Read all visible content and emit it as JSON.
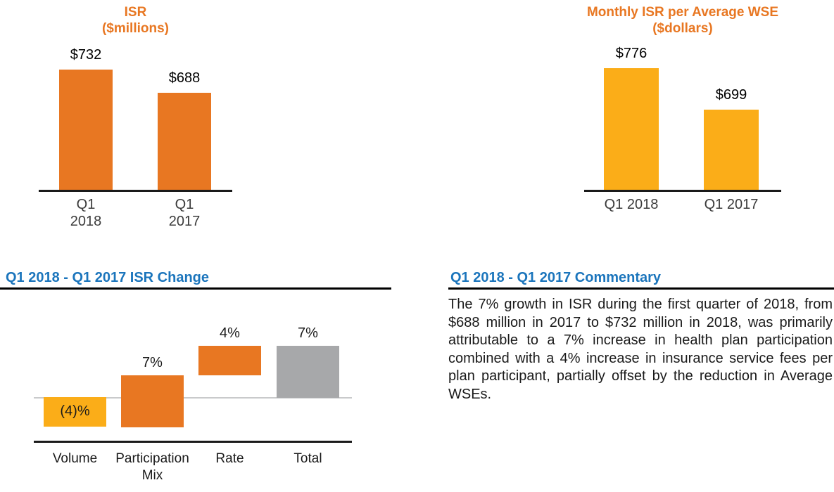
{
  "colors": {
    "accent_orange": "#E87722",
    "accent_yellow": "#FBAD18",
    "neutral_gray": "#A7A8AA",
    "heading_blue": "#1B75BC"
  },
  "chart_data": [
    {
      "type": "bar",
      "title": "ISR",
      "subtitle": "($millions)",
      "categories": [
        "Q1 2018",
        "Q1 2017"
      ],
      "values": [
        732,
        688
      ],
      "bar_labels": [
        "$732",
        "$688"
      ],
      "ylim": [
        500,
        800
      ],
      "bar_color": "#E87722",
      "grid": false,
      "legend": "none"
    },
    {
      "type": "bar",
      "title": "Monthly ISR per Average WSE",
      "subtitle": "($dollars)",
      "categories": [
        "Q1 2018",
        "Q1 2017"
      ],
      "values": [
        776,
        699
      ],
      "bar_labels": [
        "$776",
        "$699"
      ],
      "ylim": [
        550,
        850
      ],
      "bar_color": "#FBAD18",
      "grid": false,
      "legend": "none"
    },
    {
      "type": "waterfall",
      "title": "Q1 2018 - Q1 2017 ISR Change",
      "categories": [
        "Volume",
        "Participation Mix",
        "Rate",
        "Total"
      ],
      "values": [
        -4,
        7,
        4,
        7
      ],
      "bar_labels": [
        "(4)%",
        "7%",
        "4%",
        "7%"
      ],
      "kinds": [
        "delta",
        "delta",
        "delta",
        "total"
      ],
      "bar_colors": [
        "#FBAD18",
        "#E87722",
        "#E87722",
        "#A7A8AA"
      ],
      "unit": "percent",
      "baseline": 0,
      "grid": false,
      "legend": "none"
    }
  ],
  "commentary": {
    "title": "Q1 2018 - Q1 2017 Commentary",
    "body": "The 7% growth in ISR during the first quarter of 2018, from $688 million in 2017 to $732 million in 2018, was primarily attributable to a 7% increase in health plan participation combined with a 4% increase in insurance service fees per plan participant, partially offset by the reduction in Average WSEs."
  }
}
